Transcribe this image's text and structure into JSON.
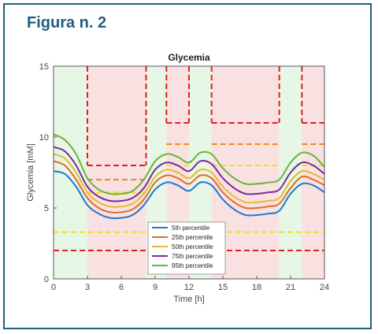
{
  "figure_label": "Figura n. 2",
  "chart_data": {
    "type": "line",
    "title": "Glycemia",
    "xlabel": "Time [h]",
    "ylabel": "Glycemia [mM]",
    "xlim": [
      0,
      24
    ],
    "ylim": [
      0,
      15
    ],
    "xticks": [
      0,
      3,
      6,
      9,
      12,
      15,
      18,
      21,
      24
    ],
    "yticks": [
      0,
      5,
      10,
      15
    ],
    "legend_position": "lower-center",
    "shaded_bands": [
      {
        "x": [
          0,
          3.0
        ],
        "color": "#e6f7e6"
      },
      {
        "x": [
          3.0,
          8.2
        ],
        "color": "#f9e1e1"
      },
      {
        "x": [
          8.2,
          10.0
        ],
        "color": "#e6f7e6"
      },
      {
        "x": [
          10.0,
          12.0
        ],
        "color": "#f9e1e1"
      },
      {
        "x": [
          12.0,
          14.0
        ],
        "color": "#e6f7e6"
      },
      {
        "x": [
          14.0,
          20.0
        ],
        "color": "#f9e1e1"
      },
      {
        "x": [
          20.0,
          22.0
        ],
        "color": "#e6f7e6"
      },
      {
        "x": [
          22.0,
          24.0
        ],
        "color": "#f9e1e1"
      }
    ],
    "threshold_red": {
      "color": "#e02020",
      "segments": [
        {
          "x": [
            3.0,
            8.2
          ],
          "y": 8.0
        },
        {
          "x": [
            10.0,
            12.0
          ],
          "y": 11.0
        },
        {
          "x": [
            14.0,
            20.0
          ],
          "y": 11.0
        },
        {
          "x": [
            22.0,
            24.0
          ],
          "y": 11.0
        }
      ],
      "verticals": [
        3.0,
        8.2,
        10.0,
        12.0,
        14.0,
        20.0,
        22.0
      ],
      "low_y": 2.0
    },
    "threshold_orange": {
      "color": "#f08a1e",
      "segments": [
        {
          "x": [
            3.0,
            8.2
          ],
          "y": 7.0
        },
        {
          "x": [
            10.0,
            12.0
          ],
          "y": 9.5
        },
        {
          "x": [
            14.0,
            20.0
          ],
          "y": 9.5
        },
        {
          "x": [
            22.0,
            24.0
          ],
          "y": 9.5
        }
      ]
    },
    "threshold_yellow": {
      "color": "#f0e020",
      "segments": [
        {
          "x": [
            3.0,
            8.2
          ],
          "y": 6.1
        },
        {
          "x": [
            10.0,
            12.0
          ],
          "y": 8.0
        },
        {
          "x": [
            14.0,
            20.0
          ],
          "y": 8.0
        },
        {
          "x": [
            22.0,
            24.0
          ],
          "y": 8.0
        }
      ],
      "low_y": 3.3
    },
    "x": [
      0,
      1,
      2,
      3,
      4,
      5,
      6,
      7,
      8,
      9,
      10,
      11,
      12,
      13,
      14,
      15,
      16,
      17,
      18,
      19,
      20,
      21,
      22,
      23,
      24
    ],
    "series": [
      {
        "name": "5th percentile",
        "color": "#1f77d4",
        "values": [
          7.6,
          7.4,
          6.5,
          5.2,
          4.6,
          4.3,
          4.3,
          4.5,
          5.2,
          6.3,
          6.8,
          6.6,
          6.2,
          6.8,
          6.6,
          5.6,
          4.9,
          4.5,
          4.5,
          4.6,
          4.8,
          6.0,
          6.7,
          6.6,
          6.1
        ]
      },
      {
        "name": "25th percentile",
        "color": "#e06b2c",
        "values": [
          8.3,
          8.0,
          7.0,
          5.7,
          5.0,
          4.7,
          4.7,
          4.9,
          5.6,
          6.8,
          7.3,
          7.1,
          6.7,
          7.3,
          7.1,
          6.1,
          5.4,
          5.0,
          5.0,
          5.1,
          5.3,
          6.4,
          7.2,
          7.0,
          6.6
        ]
      },
      {
        "name": "50th percentile",
        "color": "#e8b830",
        "values": [
          8.8,
          8.5,
          7.5,
          6.1,
          5.4,
          5.1,
          5.1,
          5.3,
          6.0,
          7.2,
          7.7,
          7.5,
          7.1,
          7.7,
          7.5,
          6.5,
          5.8,
          5.4,
          5.4,
          5.5,
          5.7,
          6.9,
          7.6,
          7.4,
          7.0
        ]
      },
      {
        "name": "75th percentile",
        "color": "#7a2a9a",
        "values": [
          9.3,
          9.0,
          8.0,
          6.5,
          5.8,
          5.5,
          5.5,
          5.7,
          6.4,
          7.7,
          8.2,
          8.0,
          7.6,
          8.3,
          8.1,
          7.1,
          6.4,
          6.0,
          6.0,
          6.1,
          6.3,
          7.5,
          8.2,
          8.0,
          7.4
        ]
      },
      {
        "name": "95th percentile",
        "color": "#6cb33a",
        "values": [
          10.2,
          9.8,
          8.8,
          7.1,
          6.3,
          6.0,
          6.0,
          6.2,
          7.0,
          8.3,
          8.8,
          8.6,
          8.2,
          8.9,
          8.8,
          7.8,
          7.1,
          6.7,
          6.7,
          6.8,
          7.0,
          8.2,
          8.9,
          8.7,
          7.9
        ]
      }
    ]
  }
}
